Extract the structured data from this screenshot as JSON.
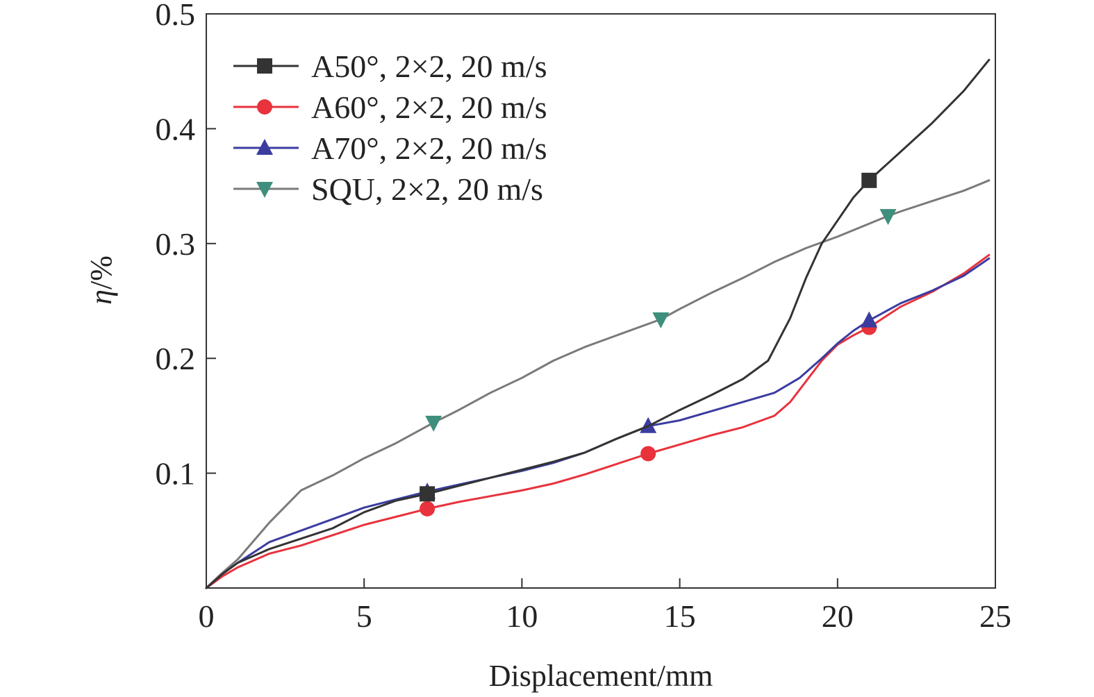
{
  "chart_data": {
    "type": "line",
    "title": "",
    "xlabel": "Displacement/mm",
    "ylabel_symbol": "η",
    "ylabel_unit": "/%",
    "xlim": [
      0,
      25
    ],
    "ylim": [
      0,
      0.5
    ],
    "x_ticks": [
      0,
      5,
      10,
      15,
      20,
      25
    ],
    "x_tick_labels": [
      "0",
      "5",
      "10",
      "15",
      "20",
      "25"
    ],
    "y_ticks": [
      0.1,
      0.2,
      0.3,
      0.4,
      0.5
    ],
    "y_tick_labels": [
      "0.1",
      "0.2",
      "0.3",
      "0.4",
      "0.5"
    ],
    "grid": false,
    "legend_position": "top-left",
    "series": [
      {
        "name": "A50°, 2×2, 20 m/s",
        "color": "#333333",
        "marker": "square",
        "points": [
          [
            0,
            0
          ],
          [
            0.5,
            0.012
          ],
          [
            1,
            0.022
          ],
          [
            2,
            0.034
          ],
          [
            3,
            0.043
          ],
          [
            4,
            0.052
          ],
          [
            5,
            0.066
          ],
          [
            6,
            0.076
          ],
          [
            7.0,
            0.082
          ],
          [
            8,
            0.089
          ],
          [
            9,
            0.096
          ],
          [
            10,
            0.103
          ],
          [
            11,
            0.11
          ],
          [
            12,
            0.118
          ],
          [
            13,
            0.13
          ],
          [
            14,
            0.141
          ],
          [
            15,
            0.155
          ],
          [
            16,
            0.168
          ],
          [
            17,
            0.182
          ],
          [
            17.8,
            0.198
          ],
          [
            18.5,
            0.235
          ],
          [
            19,
            0.27
          ],
          [
            19.5,
            0.3
          ],
          [
            20,
            0.32
          ],
          [
            20.5,
            0.34
          ],
          [
            21,
            0.355
          ],
          [
            22,
            0.38
          ],
          [
            23,
            0.405
          ],
          [
            24,
            0.433
          ],
          [
            24.8,
            0.46
          ]
        ],
        "markers": [
          [
            7.0,
            0.082
          ],
          [
            21.0,
            0.355
          ]
        ]
      },
      {
        "name": "A60°, 2×2, 20 m/s",
        "color": "#e8323c",
        "marker": "circle",
        "points": [
          [
            0,
            0
          ],
          [
            0.5,
            0.01
          ],
          [
            1,
            0.018
          ],
          [
            2,
            0.03
          ],
          [
            3,
            0.037
          ],
          [
            4,
            0.046
          ],
          [
            5,
            0.055
          ],
          [
            6,
            0.062
          ],
          [
            7.0,
            0.069
          ],
          [
            8,
            0.075
          ],
          [
            9,
            0.08
          ],
          [
            10,
            0.085
          ],
          [
            11,
            0.091
          ],
          [
            12,
            0.099
          ],
          [
            13,
            0.108
          ],
          [
            14,
            0.117
          ],
          [
            15,
            0.125
          ],
          [
            16,
            0.133
          ],
          [
            17,
            0.14
          ],
          [
            18,
            0.15
          ],
          [
            18.5,
            0.162
          ],
          [
            19,
            0.18
          ],
          [
            19.5,
            0.198
          ],
          [
            20,
            0.212
          ],
          [
            20.5,
            0.22
          ],
          [
            21.0,
            0.227
          ],
          [
            22,
            0.245
          ],
          [
            23,
            0.258
          ],
          [
            24,
            0.274
          ],
          [
            24.8,
            0.29
          ]
        ],
        "markers": [
          [
            7.0,
            0.069
          ],
          [
            14.0,
            0.117
          ],
          [
            21.0,
            0.227
          ]
        ]
      },
      {
        "name": "A70°, 2×2, 20 m/s",
        "color": "#3b3ca0",
        "marker": "triangle-up",
        "points": [
          [
            0,
            0
          ],
          [
            0.5,
            0.012
          ],
          [
            1,
            0.022
          ],
          [
            2,
            0.04
          ],
          [
            3,
            0.05
          ],
          [
            4,
            0.06
          ],
          [
            5,
            0.07
          ],
          [
            6,
            0.077
          ],
          [
            7.0,
            0.084
          ],
          [
            8,
            0.09
          ],
          [
            9,
            0.096
          ],
          [
            10,
            0.102
          ],
          [
            11,
            0.109
          ],
          [
            12,
            0.118
          ],
          [
            13,
            0.13
          ],
          [
            14.0,
            0.141
          ],
          [
            15,
            0.146
          ],
          [
            16,
            0.154
          ],
          [
            17,
            0.162
          ],
          [
            18,
            0.17
          ],
          [
            18.8,
            0.183
          ],
          [
            19.5,
            0.2
          ],
          [
            20,
            0.213
          ],
          [
            20.5,
            0.224
          ],
          [
            21.0,
            0.233
          ],
          [
            22,
            0.248
          ],
          [
            23,
            0.259
          ],
          [
            24,
            0.272
          ],
          [
            24.8,
            0.287
          ]
        ],
        "markers": [
          [
            7.0,
            0.084
          ],
          [
            14.0,
            0.141
          ],
          [
            21.0,
            0.233
          ]
        ]
      },
      {
        "name": "SQU, 2×2, 20 m/s",
        "color": "#3f8f7d",
        "line_color": "#7a7a7a",
        "marker": "triangle-down",
        "points": [
          [
            0,
            0
          ],
          [
            0.5,
            0.013
          ],
          [
            1,
            0.025
          ],
          [
            2,
            0.057
          ],
          [
            3,
            0.085
          ],
          [
            4,
            0.098
          ],
          [
            5,
            0.113
          ],
          [
            6,
            0.126
          ],
          [
            7.2,
            0.144
          ],
          [
            8,
            0.155
          ],
          [
            9,
            0.17
          ],
          [
            10,
            0.183
          ],
          [
            11,
            0.198
          ],
          [
            12,
            0.21
          ],
          [
            13,
            0.22
          ],
          [
            14.4,
            0.234
          ],
          [
            15,
            0.243
          ],
          [
            16,
            0.257
          ],
          [
            17,
            0.27
          ],
          [
            18,
            0.284
          ],
          [
            19,
            0.296
          ],
          [
            20,
            0.306
          ],
          [
            21.6,
            0.324
          ],
          [
            22,
            0.328
          ],
          [
            23,
            0.337
          ],
          [
            24,
            0.346
          ],
          [
            24.8,
            0.355
          ]
        ],
        "markers": [
          [
            7.2,
            0.144
          ],
          [
            14.4,
            0.234
          ],
          [
            21.6,
            0.324
          ]
        ]
      }
    ]
  }
}
